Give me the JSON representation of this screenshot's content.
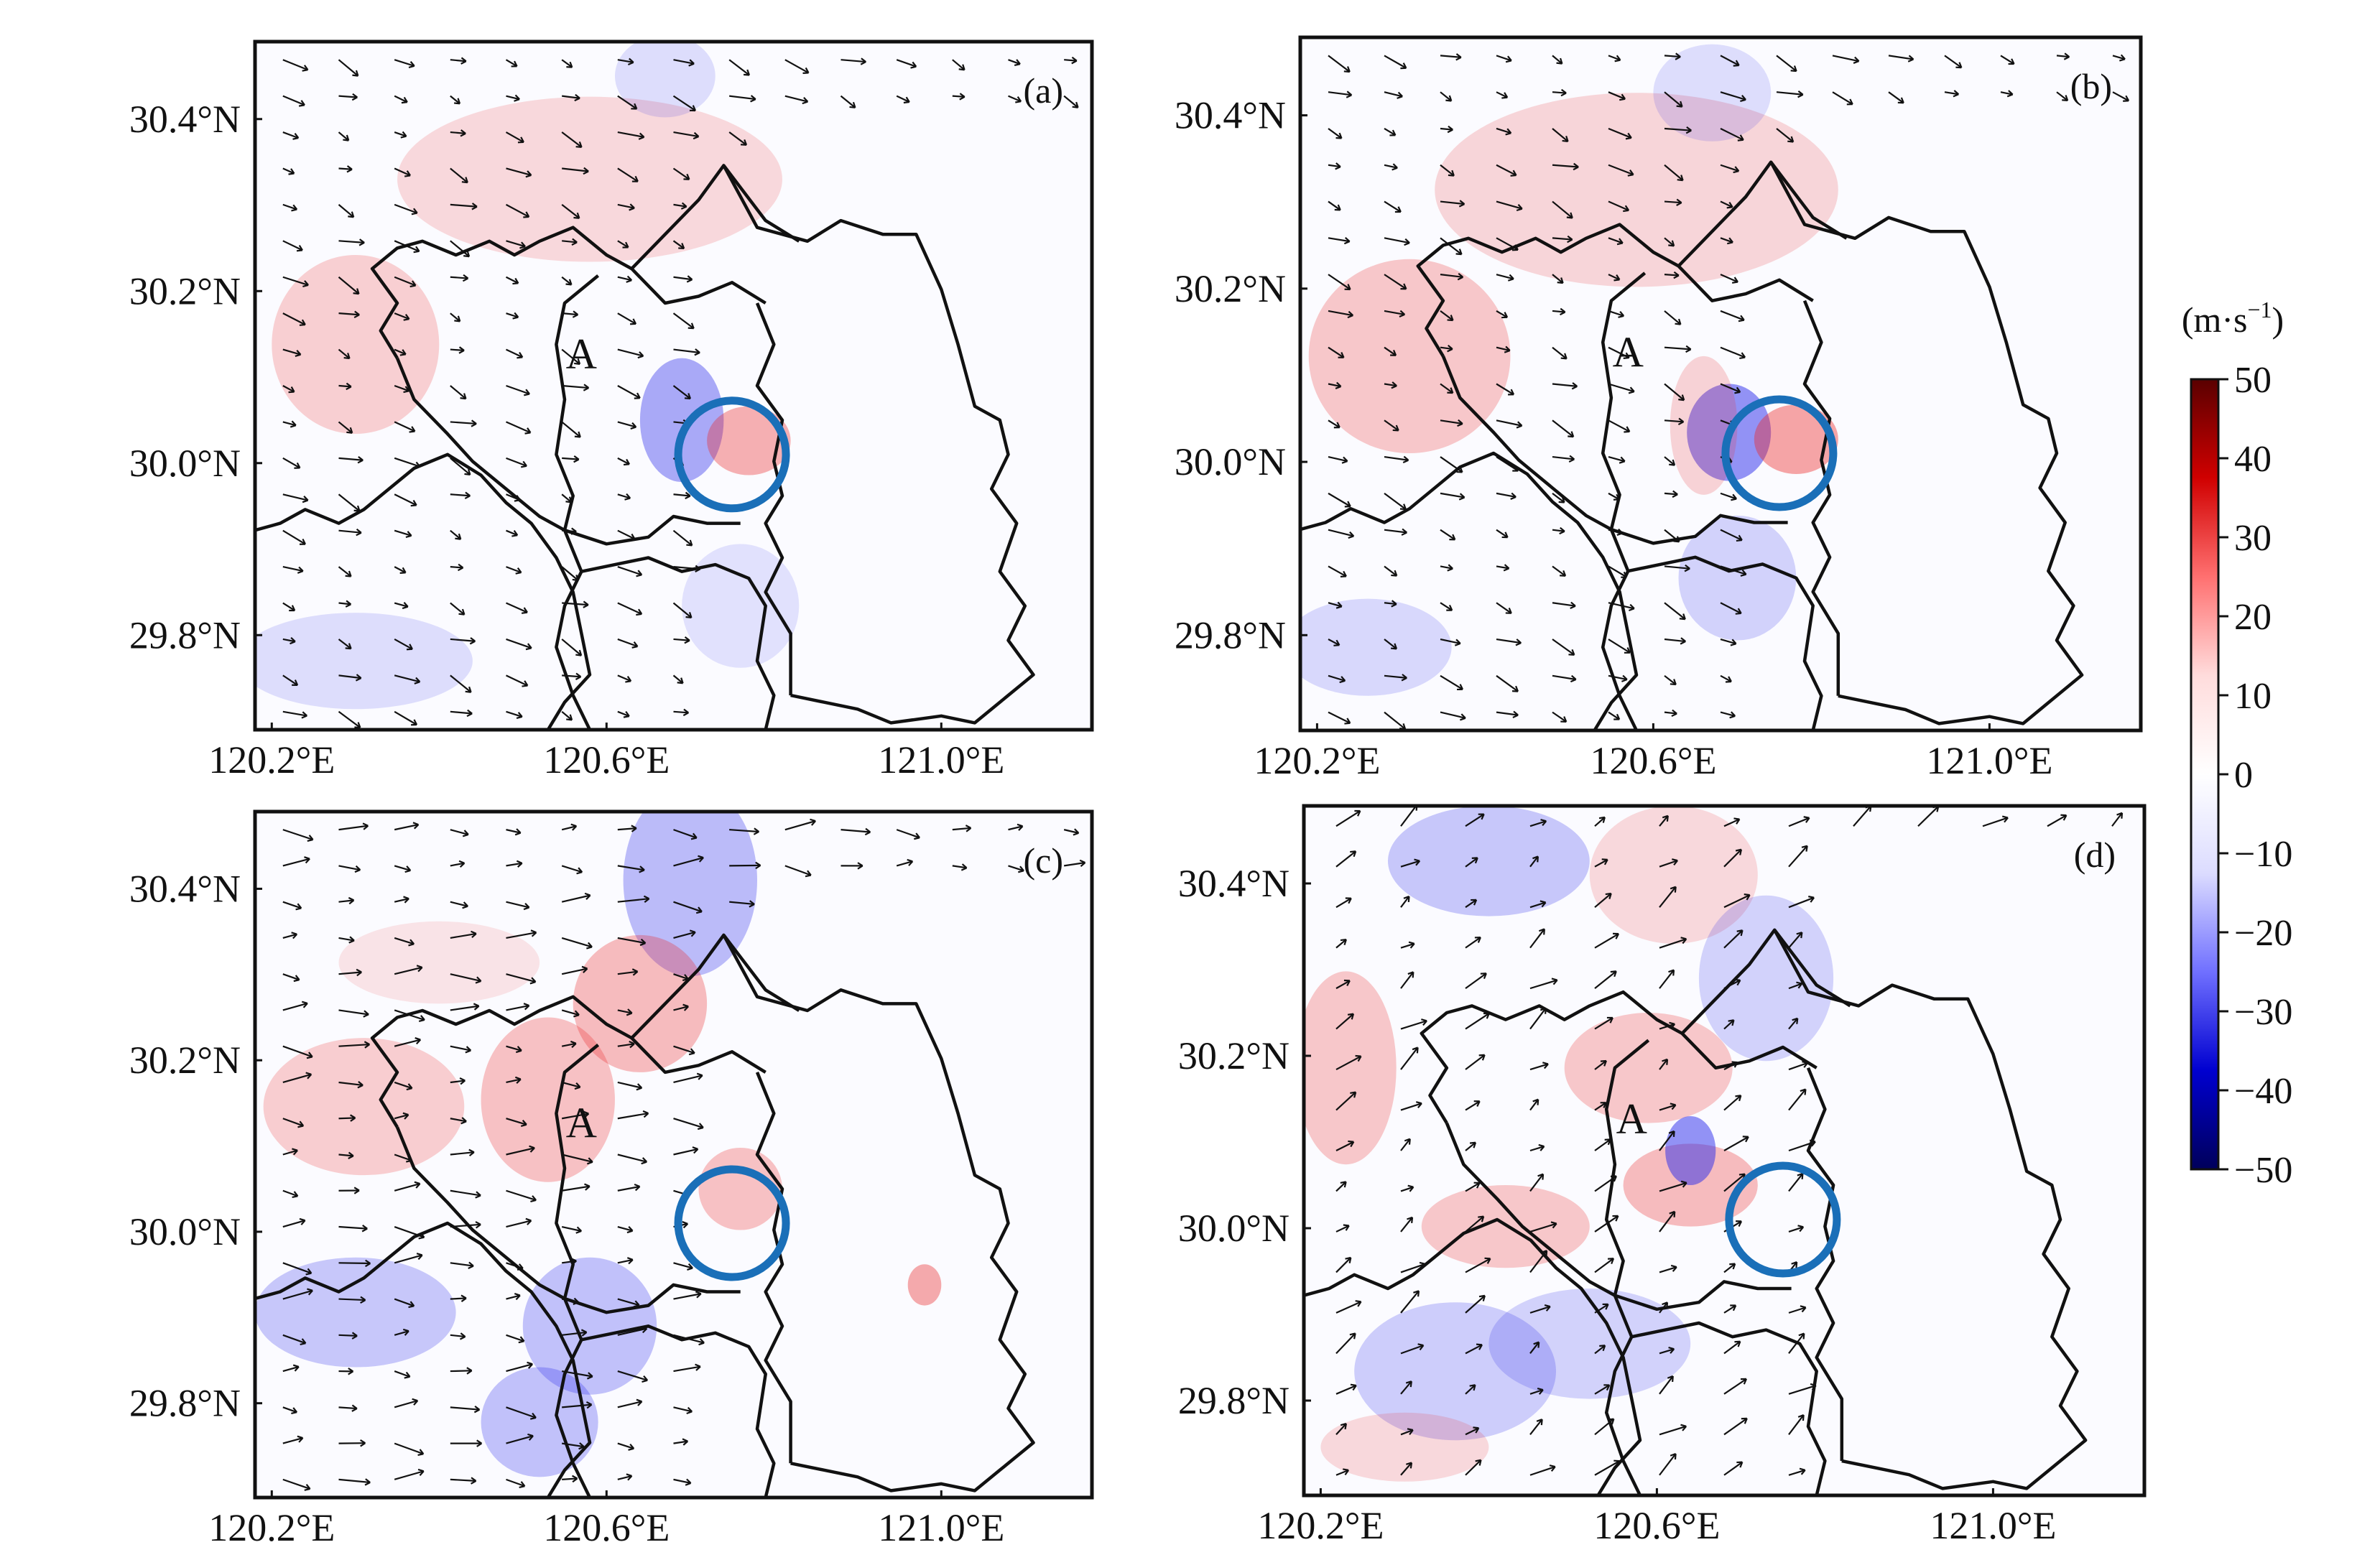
{
  "panels": [
    {
      "id": "a",
      "label": "(a)",
      "circle": [
        120.75,
        30.01
      ]
    },
    {
      "id": "b",
      "label": "(b)",
      "circle": [
        120.75,
        30.01
      ]
    },
    {
      "id": "c",
      "label": "(c)",
      "circle": [
        120.75,
        30.01
      ]
    },
    {
      "id": "d",
      "label": "(d)",
      "circle": [
        120.75,
        30.01
      ]
    }
  ],
  "axes": {
    "lon_range": [
      120.18,
      121.18
    ],
    "lat_range": [
      29.69,
      30.49
    ],
    "xticks": [
      {
        "value": 120.2,
        "label": "120.2°E"
      },
      {
        "value": 120.6,
        "label": "120.6°E"
      },
      {
        "value": 121.0,
        "label": "121.0°E"
      }
    ],
    "yticks": [
      {
        "value": 30.4,
        "label": "30.4°N"
      },
      {
        "value": 30.2,
        "label": "30.2°N"
      },
      {
        "value": 30.0,
        "label": "30.0°N"
      },
      {
        "value": 29.8,
        "label": "29.8°N"
      }
    ]
  },
  "marker": {
    "text": "A",
    "lon": 120.57,
    "lat": 30.11
  },
  "colorbar": {
    "title": "(m·s",
    "superscript": "−1",
    "title_close": ")",
    "range": [
      -50,
      50
    ],
    "tick_labels": [
      "50",
      "40",
      "30",
      "20",
      "10",
      "0",
      "−10",
      "−20",
      "−30",
      "−40",
      "−50"
    ],
    "colors": [
      "#5a0000",
      "#d00000",
      "#ff7070",
      "#ffdcdc",
      "#ffffff",
      "#dcdcff",
      "#7070ff",
      "#0000d0",
      "#00005a"
    ]
  },
  "colors": {
    "circle": "#1a6fb8",
    "frame": "#111111",
    "arrow": "#111111"
  }
}
